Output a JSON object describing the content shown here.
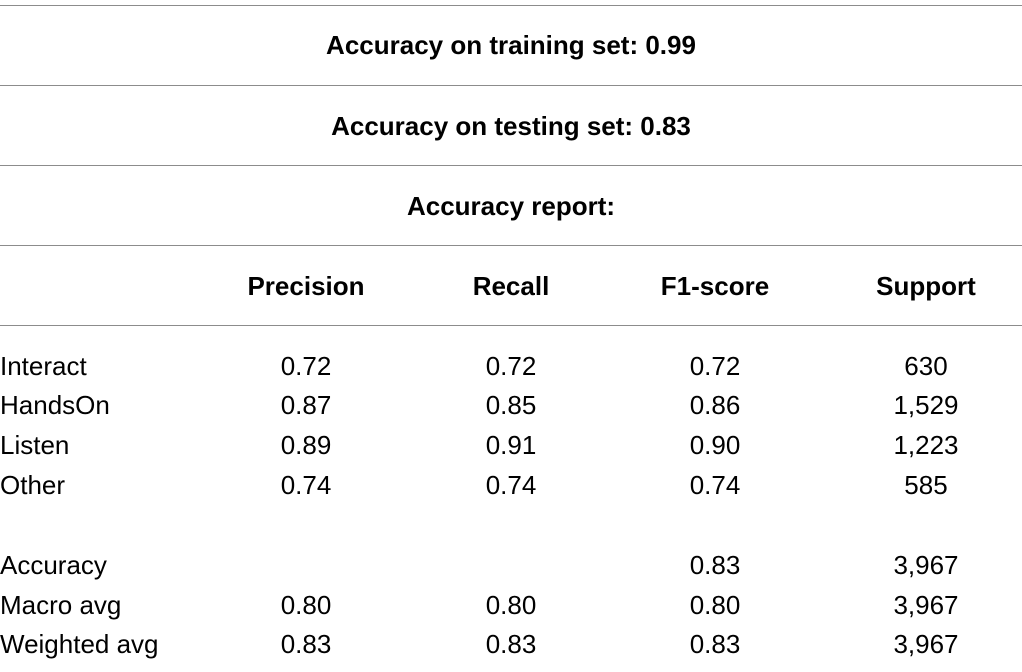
{
  "summary": {
    "train_accuracy": "Accuracy on training set: 0.99",
    "test_accuracy": "Accuracy on testing set: 0.83",
    "report_title": "Accuracy report:"
  },
  "table": {
    "columns": [
      "Precision",
      "Recall",
      "F1-score",
      "Support"
    ],
    "class_rows": [
      {
        "label": "Interact",
        "cells": [
          "0.72",
          "0.72",
          "0.72",
          "630"
        ]
      },
      {
        "label": "HandsOn",
        "cells": [
          "0.87",
          "0.85",
          "0.86",
          "1,529"
        ]
      },
      {
        "label": "Listen",
        "cells": [
          "0.89",
          "0.91",
          "0.90",
          "1,223"
        ]
      },
      {
        "label": "Other",
        "cells": [
          "0.74",
          "0.74",
          "0.74",
          "585"
        ]
      }
    ],
    "summary_rows": [
      {
        "label": "Accuracy",
        "cells": [
          "",
          "",
          "0.83",
          "3,967"
        ]
      },
      {
        "label": "Macro avg",
        "cells": [
          "0.80",
          "0.80",
          "0.80",
          "3,967"
        ]
      },
      {
        "label": "Weighted avg",
        "cells": [
          "0.83",
          "0.83",
          "0.83",
          "3,967"
        ]
      }
    ]
  }
}
